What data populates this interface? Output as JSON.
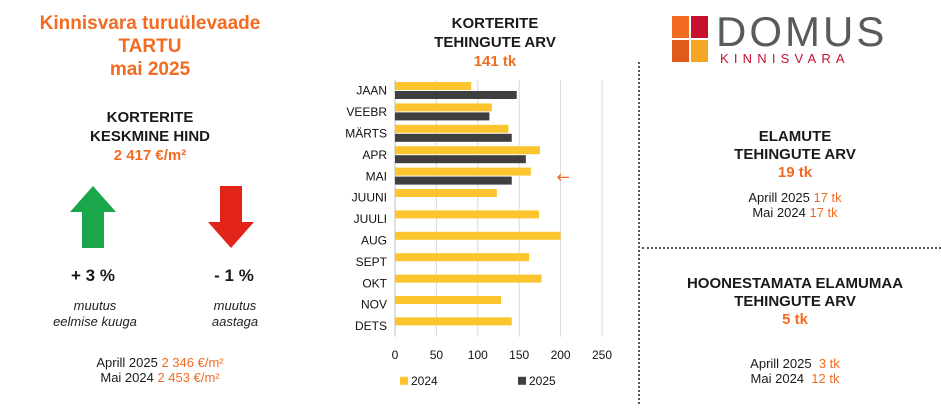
{
  "header": {
    "line1": "Kinnisvara turuülevaade",
    "line2": "TARTU",
    "line3": "mai 2025"
  },
  "avg_price": {
    "label1": "KORTERITE",
    "label2": "KESKMINE HIND",
    "value": "2 417 €/m²",
    "monthly": {
      "pct": "+ 3 %",
      "caption1": "muutus",
      "caption2": "eelmise kuuga",
      "direction": "up",
      "color": "#1aa64b"
    },
    "yearly": {
      "pct": "- 1 %",
      "caption1": "muutus",
      "caption2": "aastaga",
      "direction": "down",
      "color": "#e2231a"
    },
    "compare": [
      {
        "label": "Aprill 2025",
        "value": "2 346 €/m²"
      },
      {
        "label": "Mai 2024",
        "value": "2 453 €/m²"
      }
    ]
  },
  "chart_title": {
    "line1": "KORTERITE",
    "line2": "TEHINGUTE ARV",
    "value": "141 tk"
  },
  "chart_data": {
    "type": "bar",
    "orientation": "horizontal",
    "categories": [
      "JAAN",
      "VEEBR",
      "MÄRTS",
      "APR",
      "MAI",
      "JUUNI",
      "JUULI",
      "AUG",
      "SEPT",
      "OKT",
      "NOV",
      "DETS"
    ],
    "series": [
      {
        "name": "2024",
        "color": "#fcc52e",
        "values": [
          92,
          117,
          137,
          175,
          164,
          123,
          174,
          200,
          162,
          177,
          128,
          141
        ]
      },
      {
        "name": "2025",
        "color": "#3f3f3f",
        "values": [
          147,
          114,
          141,
          158,
          141,
          null,
          null,
          null,
          null,
          null,
          null,
          null
        ]
      }
    ],
    "xlim": [
      0,
      250
    ],
    "xticks": [
      0,
      50,
      100,
      150,
      200,
      250
    ],
    "grid": "vertical",
    "legend": "bottom",
    "annotation": {
      "text": "←",
      "category": "MAI",
      "color": "#f26b21"
    }
  },
  "logo": {
    "word": "DOMUS",
    "sub": "KINNISVARA"
  },
  "elamute": {
    "line1": "ELAMUTE",
    "line2": "TEHINGUTE ARV",
    "value": "19 tk",
    "compare": [
      {
        "label": "Aprill 2025",
        "value": "17 tk"
      },
      {
        "label": "Mai 2024",
        "value": "17 tk"
      }
    ]
  },
  "maa": {
    "line1": "HOONESTAMATA ELAMUMAA",
    "line2": "TEHINGUTE ARV",
    "value": "5 tk",
    "compare": [
      {
        "label": "Aprill 2025",
        "value": "3 tk"
      },
      {
        "label": "Mai 2024",
        "value": "12 tk"
      }
    ]
  }
}
